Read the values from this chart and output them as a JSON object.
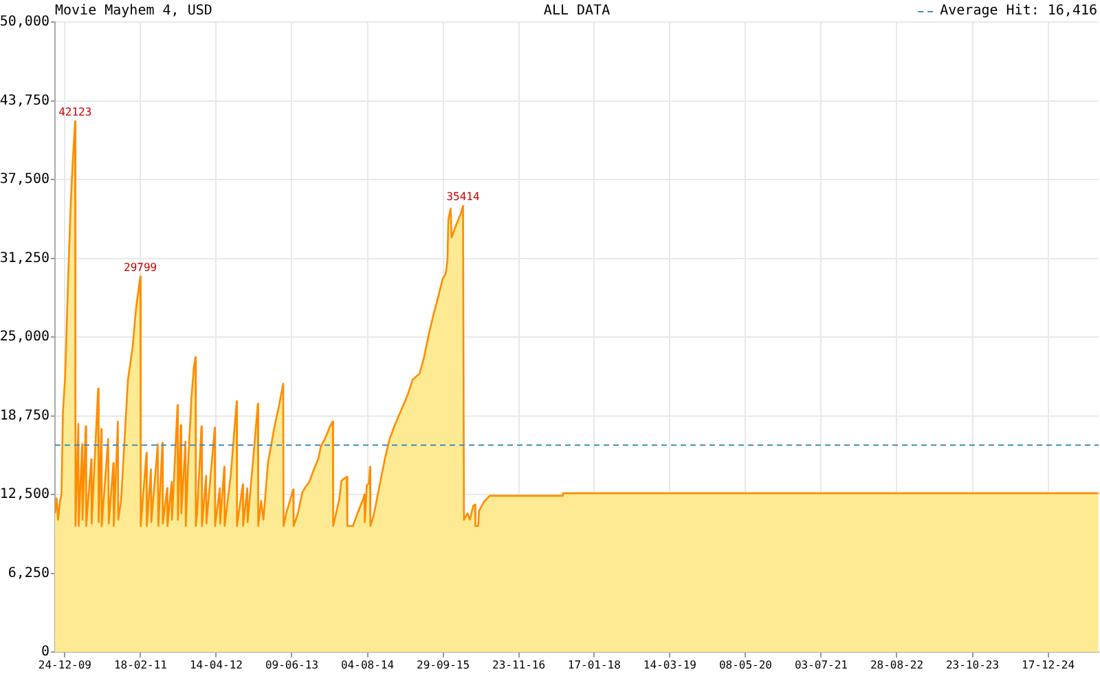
{
  "chart_data": {
    "type": "area",
    "title": "Movie Mayhem 4, USD",
    "subtitle": "ALL DATA",
    "x": [
      "2009-10-30",
      "2009-11-08",
      "2009-11-16",
      "2009-11-27",
      "2009-12-05",
      "2009-12-13",
      "2009-12-26",
      "2010-01-12",
      "2010-01-25",
      "2010-02-06",
      "2010-02-19",
      "2010-02-21",
      "2010-03-09",
      "2010-03-11",
      "2010-03-30",
      "2010-04-01",
      "2010-04-19",
      "2010-04-22",
      "2010-05-20",
      "2010-05-22",
      "2010-06-27",
      "2010-06-30",
      "2010-07-15",
      "2010-07-17",
      "2010-08-22",
      "2010-08-25",
      "2010-09-20",
      "2010-09-22",
      "2010-10-15",
      "2010-10-17",
      "2010-11-02",
      "2010-12-10",
      "2011-01-05",
      "2011-01-25",
      "2011-02-17",
      "2011-02-19",
      "2011-03-23",
      "2011-03-25",
      "2011-04-17",
      "2011-04-19",
      "2011-05-25",
      "2011-05-28",
      "2011-06-20",
      "2011-06-22",
      "2011-07-16",
      "2011-07-18",
      "2011-08-10",
      "2011-08-12",
      "2011-09-12",
      "2011-09-14",
      "2011-09-30",
      "2011-10-03",
      "2011-10-26",
      "2011-10-28",
      "2011-11-10",
      "2011-11-28",
      "2011-12-11",
      "2011-12-21",
      "2011-12-23",
      "2011-12-30",
      "2012-01-23",
      "2012-01-26",
      "2012-02-18",
      "2012-02-20",
      "2012-04-06",
      "2012-04-08",
      "2012-05-04",
      "2012-05-06",
      "2012-05-29",
      "2012-05-31",
      "2012-07-04",
      "2012-08-06",
      "2012-08-08",
      "2012-09-09",
      "2012-09-11",
      "2012-10-04",
      "2012-10-06",
      "2012-11-04",
      "2012-12-02",
      "2012-12-04",
      "2012-12-20",
      "2013-01-02",
      "2013-01-27",
      "2013-03-06",
      "2013-03-29",
      "2013-04-22",
      "2013-04-24",
      "2013-05-09",
      "2013-06-17",
      "2013-06-19",
      "2013-07-13",
      "2013-08-07",
      "2013-08-20",
      "2013-09-14",
      "2013-10-10",
      "2013-11-05",
      "2013-11-17",
      "2013-12-13",
      "2014-01-07",
      "2014-01-23",
      "2014-01-25",
      "2014-02-28",
      "2014-03-12",
      "2014-04-11",
      "2014-04-14",
      "2014-05-15",
      "2014-06-09",
      "2014-07-10",
      "2014-07-18",
      "2014-07-20",
      "2014-07-31",
      "2014-08-12",
      "2014-08-18",
      "2014-08-20",
      "2014-09-07",
      "2014-10-16",
      "2014-11-10",
      "2014-12-05",
      "2014-12-31",
      "2015-02-08",
      "2015-03-18",
      "2015-04-12",
      "2015-05-21",
      "2015-06-15",
      "2015-07-11",
      "2015-08-05",
      "2015-08-31",
      "2015-09-26",
      "2015-10-13",
      "2015-10-23",
      "2015-10-28",
      "2015-11-10",
      "2015-11-15",
      "2015-12-11",
      "2016-01-05",
      "2016-01-18",
      "2016-01-23",
      "2016-02-12",
      "2016-02-25",
      "2016-03-14",
      "2016-03-24",
      "2016-03-27",
      "2016-04-11",
      "2016-04-16",
      "2016-05-12",
      "2016-06-14",
      "2017-07-25",
      "2017-07-27",
      "2025-09-23"
    ],
    "values": [
      11000,
      12200,
      10500,
      12000,
      12500,
      19000,
      22000,
      30000,
      35400,
      39000,
      42123,
      10000,
      18100,
      10000,
      16500,
      10500,
      17900,
      10000,
      15300,
      10200,
      20900,
      10300,
      17700,
      10000,
      16900,
      10200,
      15000,
      10000,
      18300,
      10500,
      12000,
      21600,
      24200,
      27400,
      29799,
      10000,
      15800,
      10000,
      14500,
      10300,
      16500,
      10000,
      16600,
      10200,
      13000,
      10000,
      13500,
      10500,
      19600,
      10500,
      18000,
      11000,
      16700,
      10000,
      15000,
      20100,
      22500,
      23400,
      10000,
      11000,
      17900,
      10000,
      14000,
      10200,
      17800,
      10000,
      13000,
      10200,
      14700,
      10000,
      14000,
      19900,
      10000,
      13300,
      10000,
      13000,
      10300,
      15000,
      19700,
      10000,
      12000,
      10500,
      15000,
      18000,
      19500,
      21300,
      10000,
      11000,
      12900,
      10000,
      11000,
      12700,
      13000,
      13500,
      14500,
      15400,
      16300,
      17000,
      17900,
      18300,
      10000,
      12100,
      13600,
      13900,
      10000,
      10000,
      11000,
      12100,
      12500,
      10300,
      13200,
      13400,
      14700,
      10000,
      10800,
      13600,
      15400,
      16900,
      17900,
      19200,
      20500,
      21600,
      22100,
      23400,
      25200,
      26700,
      28100,
      29600,
      30000,
      31000,
      34300,
      35200,
      32900,
      33900,
      34800,
      35414,
      10500,
      11000,
      10500,
      11600,
      11700,
      10000,
      10000,
      11200,
      11900,
      12400,
      12400,
      12600,
      12600
    ],
    "value_labels": [
      null,
      null,
      null,
      null,
      null,
      null,
      null,
      null,
      null,
      null,
      "42123",
      null,
      null,
      null,
      null,
      null,
      null,
      null,
      null,
      null,
      null,
      null,
      null,
      null,
      null,
      null,
      null,
      null,
      null,
      null,
      null,
      null,
      null,
      null,
      "29799",
      null,
      null,
      null,
      null,
      null,
      null,
      null,
      null,
      null,
      null,
      null,
      null,
      null,
      null,
      null,
      null,
      null,
      null,
      null,
      null,
      null,
      null,
      null,
      null,
      null,
      null,
      null,
      null,
      null,
      null,
      null,
      null,
      null,
      null,
      null,
      null,
      null,
      null,
      null,
      null,
      null,
      null,
      null,
      null,
      null,
      null,
      null,
      null,
      null,
      null,
      null,
      null,
      null,
      null,
      null,
      null,
      null,
      null,
      null,
      null,
      null,
      null,
      null,
      null,
      null,
      null,
      null,
      null,
      null,
      null,
      null,
      null,
      null,
      null,
      null,
      null,
      null,
      null,
      null,
      null,
      null,
      null,
      null,
      null,
      null,
      null,
      null,
      null,
      null,
      null,
      null,
      null,
      null,
      null,
      null,
      null,
      null,
      null,
      null,
      null,
      "35414",
      null,
      null,
      null,
      null,
      null,
      null,
      null,
      null,
      null,
      null,
      null,
      null,
      null
    ],
    "color": "#ffea94",
    "xlim": [
      "2009-10-30",
      "2025-09-24"
    ],
    "xticks": [
      {
        "value": "2009-12-24",
        "label": "24-12-09"
      },
      {
        "value": "2011-02-18",
        "label": "18-02-11"
      },
      {
        "value": "2012-04-14",
        "label": "14-04-12"
      },
      {
        "value": "2013-06-09",
        "label": "09-06-13"
      },
      {
        "value": "2014-08-04",
        "label": "04-08-14"
      },
      {
        "value": "2015-09-29",
        "label": "29-09-15"
      },
      {
        "value": "2016-11-23",
        "label": "23-11-16"
      },
      {
        "value": "2018-01-17",
        "label": "17-01-18"
      },
      {
        "value": "2019-03-14",
        "label": "14-03-19"
      },
      {
        "value": "2020-05-08",
        "label": "08-05-20"
      },
      {
        "value": "2021-07-03",
        "label": "03-07-21"
      },
      {
        "value": "2022-08-28",
        "label": "28-08-22"
      },
      {
        "value": "2023-10-23",
        "label": "23-10-23"
      },
      {
        "value": "2024-12-17",
        "label": "17-12-24"
      }
    ],
    "ylim": [
      0,
      50000
    ],
    "yticks": [
      0,
      {
        "value": 6250,
        "label": "6,250"
      },
      {
        "value": 12500,
        "label": "12,500"
      },
      {
        "value": 18750,
        "label": "18,750"
      },
      {
        "value": 25000,
        "label": "25,000"
      },
      {
        "value": 31250,
        "label": "31,250"
      },
      {
        "value": 37500,
        "label": "37,500"
      },
      {
        "value": 43750,
        "label": "43,750"
      },
      {
        "value": 50000,
        "label": "50,000"
      }
    ],
    "grid": true,
    "ref_lines": [
      {
        "axis": "y",
        "value": 16416,
        "label": "Average Hit: 16,416",
        "color": "#3a8cc0",
        "line_style": "dashed"
      }
    ]
  }
}
